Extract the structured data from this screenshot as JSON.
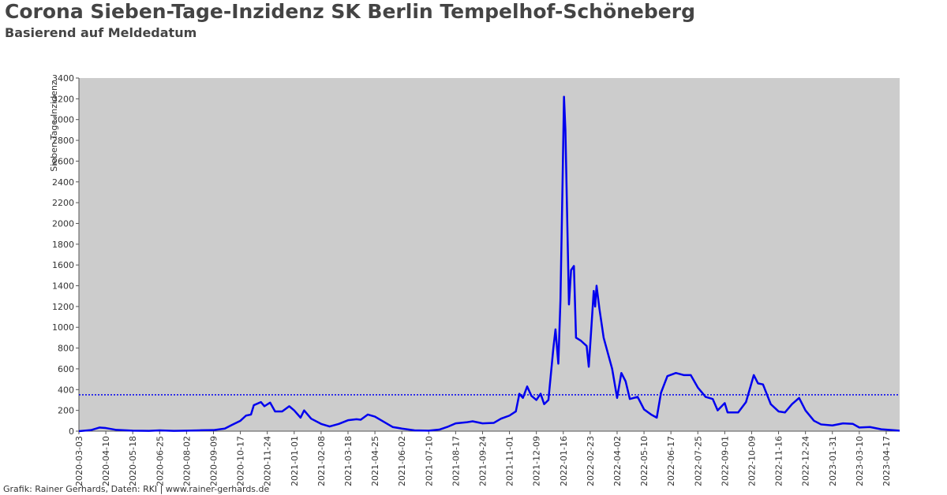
{
  "chart_data": {
    "type": "line",
    "title": "Corona Sieben-Tage-Inzidenz SK Berlin Tempelhof-Schöneberg",
    "subtitle": "Basierend auf Meldedatum",
    "y_label": "Sieben-Tage-Inzidenz",
    "footer": "Grafik: Rainer Gerhards, Daten: RKI | www.rainer-gerhards.de",
    "xlim": [
      "2020-03-03",
      "2023-05-06"
    ],
    "xticks": [
      "2020-03-03",
      "2020-04-10",
      "2020-05-18",
      "2020-06-25",
      "2020-08-02",
      "2020-09-09",
      "2020-10-17",
      "2020-11-24",
      "2021-01-01",
      "2021-02-08",
      "2021-03-18",
      "2021-04-25",
      "2021-06-02",
      "2021-07-10",
      "2021-08-17",
      "2021-09-24",
      "2021-11-01",
      "2021-12-09",
      "2022-01-16",
      "2022-02-23",
      "2022-04-02",
      "2022-05-10",
      "2022-06-17",
      "2022-07-25",
      "2022-09-01",
      "2022-10-09",
      "2022-11-16",
      "2022-12-24",
      "2023-01-31",
      "2023-03-10",
      "2023-04-17"
    ],
    "ylim": [
      0,
      3400
    ],
    "yticks": [
      0,
      200,
      400,
      600,
      800,
      1000,
      1200,
      1400,
      1600,
      1800,
      2000,
      2200,
      2400,
      2600,
      2800,
      3000,
      3200,
      3400
    ],
    "plot_background": "#cccccc",
    "threshold": 350,
    "threshold_color": "#0000ee",
    "x": [
      "2020-03-03",
      "2020-03-20",
      "2020-04-01",
      "2020-04-10",
      "2020-04-25",
      "2020-05-18",
      "2020-06-10",
      "2020-06-25",
      "2020-07-15",
      "2020-08-02",
      "2020-08-20",
      "2020-09-09",
      "2020-09-25",
      "2020-10-05",
      "2020-10-17",
      "2020-10-25",
      "2020-11-01",
      "2020-11-05",
      "2020-11-15",
      "2020-11-20",
      "2020-11-28",
      "2020-12-05",
      "2020-12-15",
      "2020-12-25",
      "2021-01-01",
      "2021-01-10",
      "2021-01-15",
      "2021-01-25",
      "2021-02-08",
      "2021-02-20",
      "2021-03-05",
      "2021-03-18",
      "2021-03-30",
      "2021-04-05",
      "2021-04-15",
      "2021-04-25",
      "2021-05-10",
      "2021-05-20",
      "2021-06-02",
      "2021-06-20",
      "2021-07-10",
      "2021-07-25",
      "2021-08-05",
      "2021-08-17",
      "2021-09-01",
      "2021-09-10",
      "2021-09-24",
      "2021-10-10",
      "2021-10-20",
      "2021-11-01",
      "2021-11-10",
      "2021-11-15",
      "2021-11-20",
      "2021-11-26",
      "2021-12-02",
      "2021-12-09",
      "2021-12-15",
      "2021-12-20",
      "2021-12-26",
      "2022-01-02",
      "2022-01-05",
      "2022-01-09",
      "2022-01-12",
      "2022-01-15",
      "2022-01-17",
      "2022-01-19",
      "2022-01-24",
      "2022-01-27",
      "2022-01-31",
      "2022-02-03",
      "2022-02-10",
      "2022-02-18",
      "2022-02-21",
      "2022-02-24",
      "2022-02-28",
      "2022-03-02",
      "2022-03-04",
      "2022-03-08",
      "2022-03-14",
      "2022-03-20",
      "2022-03-26",
      "2022-04-02",
      "2022-04-08",
      "2022-04-14",
      "2022-04-20",
      "2022-05-01",
      "2022-05-10",
      "2022-05-20",
      "2022-05-28",
      "2022-06-03",
      "2022-06-12",
      "2022-06-24",
      "2022-07-05",
      "2022-07-15",
      "2022-07-25",
      "2022-08-05",
      "2022-08-15",
      "2022-08-22",
      "2022-09-01",
      "2022-09-05",
      "2022-09-20",
      "2022-10-01",
      "2022-10-07",
      "2022-10-12",
      "2022-10-18",
      "2022-10-25",
      "2022-11-05",
      "2022-11-16",
      "2022-11-25",
      "2022-12-05",
      "2022-12-15",
      "2022-12-24",
      "2023-01-05",
      "2023-01-15",
      "2023-01-31",
      "2023-02-15",
      "2023-03-01",
      "2023-03-10",
      "2023-03-25",
      "2023-04-10",
      "2023-04-25",
      "2023-05-06"
    ],
    "series": [
      {
        "color": "#0000ee",
        "values": [
          0,
          10,
          35,
          30,
          12,
          5,
          3,
          8,
          3,
          5,
          8,
          10,
          25,
          60,
          100,
          150,
          160,
          250,
          280,
          240,
          275,
          190,
          190,
          240,
          200,
          130,
          200,
          120,
          70,
          45,
          70,
          105,
          115,
          110,
          160,
          140,
          80,
          40,
          25,
          8,
          5,
          15,
          40,
          75,
          85,
          95,
          75,
          80,
          120,
          150,
          190,
          360,
          320,
          430,
          340,
          300,
          360,
          260,
          300,
          800,
          980,
          650,
          1260,
          2400,
          3220,
          2900,
          1220,
          1550,
          1590,
          900,
          870,
          820,
          620,
          930,
          1350,
          1200,
          1400,
          1180,
          900,
          750,
          600,
          320,
          560,
          480,
          310,
          330,
          210,
          160,
          130,
          370,
          530,
          560,
          540,
          540,
          420,
          330,
          310,
          200,
          270,
          180,
          180,
          280,
          420,
          540,
          460,
          450,
          260,
          190,
          180,
          260,
          320,
          200,
          100,
          65,
          55,
          75,
          70,
          35,
          40,
          18,
          10,
          5
        ]
      }
    ]
  }
}
